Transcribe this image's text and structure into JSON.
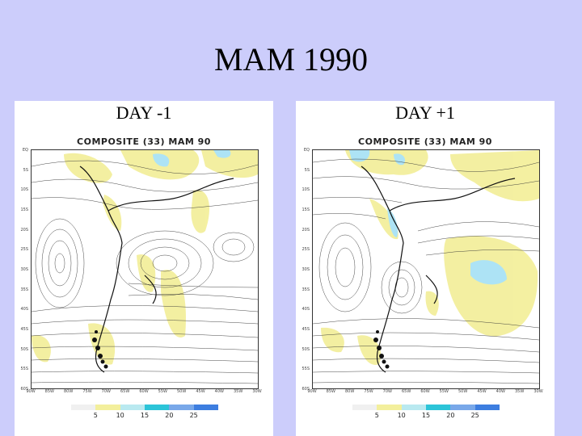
{
  "slide": {
    "title": "MAM 1990"
  },
  "panels": [
    {
      "day_label": "DAY -1",
      "map_title": "COMPOSITE (33) MAM 90"
    },
    {
      "day_label": "DAY +1",
      "map_title": "COMPOSITE (33) MAM 90"
    }
  ],
  "latitudes": [
    "EQ",
    "5S",
    "10S",
    "15S",
    "20S",
    "25S",
    "30S",
    "35S",
    "40S",
    "45S",
    "50S",
    "55S",
    "60S"
  ],
  "longitudes": [
    "90W",
    "85W",
    "80W",
    "75W",
    "70W",
    "65W",
    "60W",
    "55W",
    "50W",
    "45W",
    "40W",
    "35W",
    "30W"
  ],
  "colorbar": {
    "labels": [
      "5",
      "10",
      "15",
      "20",
      "25"
    ],
    "colors": [
      "#f0f0f0",
      "#f3ef9c",
      "#b9e9f0",
      "#2cc4d8",
      "#79a8e9",
      "#3d7ee0"
    ]
  },
  "colors": {
    "background": "#cccdfb",
    "shade_yellow": "#f3ef9c",
    "shade_blue": "#a9e2f5",
    "land_black": "#111111"
  }
}
